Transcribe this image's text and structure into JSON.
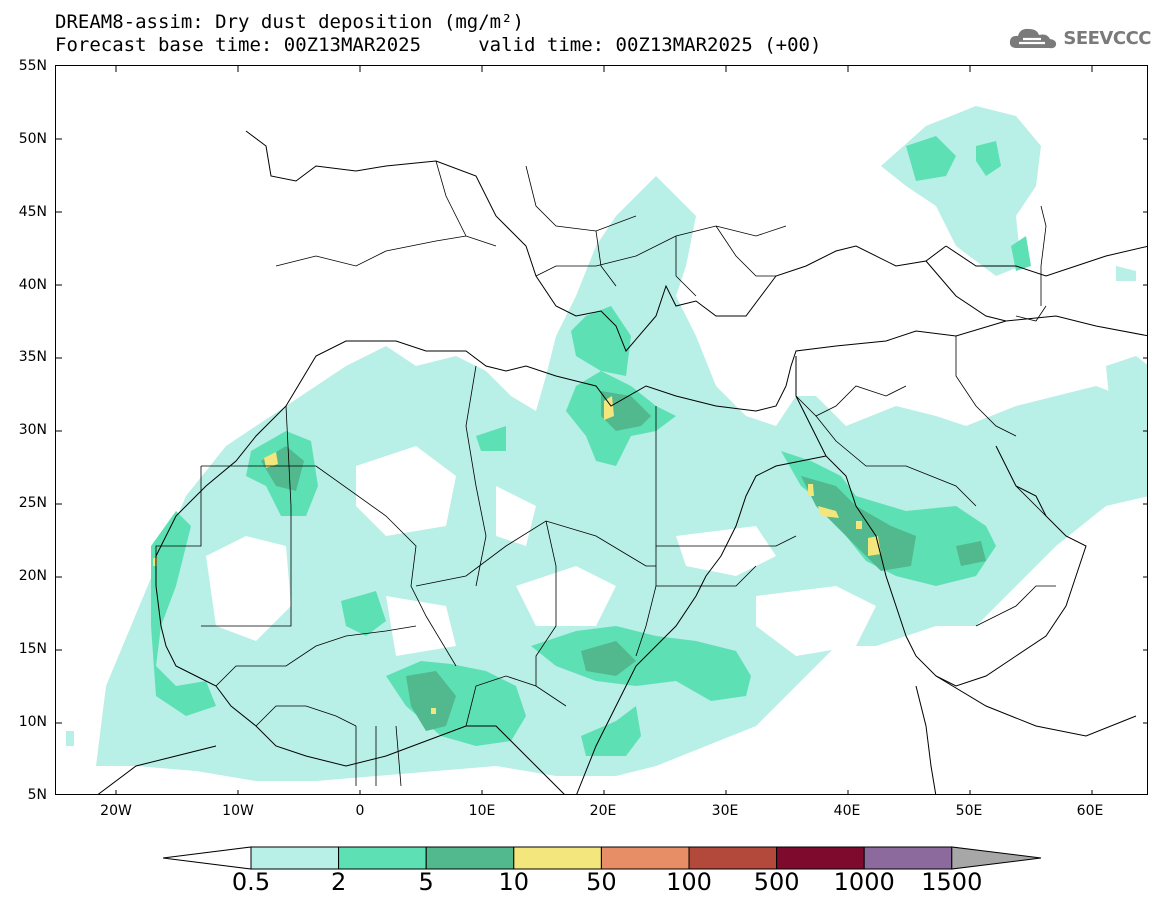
{
  "title": {
    "line1": "DREAM8-assim: Dry dust deposition (mg/m²)",
    "line2": "Forecast base time: 00Z13MAR2025     valid time: 00Z13MAR2025 (+00)"
  },
  "logo": {
    "text": "SEEVCCC",
    "icon": "cloud-icon"
  },
  "axes": {
    "lat_labels": [
      "55N",
      "50N",
      "45N",
      "40N",
      "35N",
      "30N",
      "25N",
      "20N",
      "15N",
      "10N",
      "5N"
    ],
    "lon_labels": [
      "20W",
      "10W",
      "0",
      "10E",
      "20E",
      "30E",
      "40E",
      "50E",
      "60E"
    ]
  },
  "colorbar": {
    "labels": [
      "0.5",
      "2",
      "5",
      "10",
      "50",
      "100",
      "500",
      "1000",
      "1500"
    ],
    "colors": [
      "#b8efe6",
      "#5ee0b5",
      "#52b88e",
      "#f3e67c",
      "#e88e66",
      "#b3493b",
      "#7e0b2d",
      "#8c6a9e"
    ],
    "under_color": "#ffffff",
    "over_color": "#a7a7a7"
  },
  "map_colors": {
    "light": "#b8efe6",
    "medium": "#5ee0b5",
    "dark": "#52b88e",
    "yellow": "#f3e67c"
  }
}
